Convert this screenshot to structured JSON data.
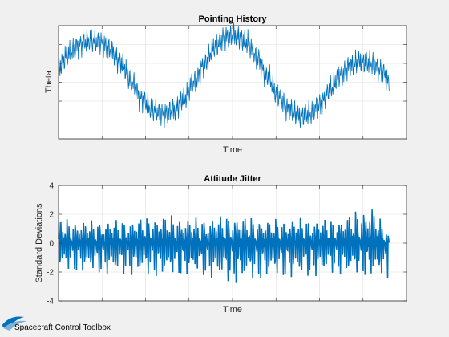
{
  "chart_data": [
    {
      "type": "line",
      "title": "Pointing History",
      "xlabel": "Time",
      "ylabel": "Theta",
      "xlim": [
        0,
        1
      ],
      "ylim": [
        -1.5,
        1.5
      ],
      "yticks": [
        -1,
        -0.5,
        0,
        0.5,
        1
      ],
      "yticklabels_shown": false,
      "xticklabels_shown": false,
      "grid": true,
      "color": "#0072BD",
      "series": [
        {
          "x": [
            0.0,
            0.03,
            0.06,
            0.09,
            0.12,
            0.15,
            0.18,
            0.21,
            0.24,
            0.27,
            0.3,
            0.33,
            0.36,
            0.39,
            0.42,
            0.45,
            0.48,
            0.51,
            0.54,
            0.57,
            0.6,
            0.63,
            0.66,
            0.69,
            0.72,
            0.75,
            0.78,
            0.81,
            0.84,
            0.87,
            0.9,
            0.93,
            0.95
          ],
          "values": [
            0.4,
            0.75,
            1.0,
            1.1,
            1.05,
            0.85,
            0.5,
            0.0,
            -0.45,
            -0.75,
            -0.85,
            -0.75,
            -0.45,
            0.0,
            0.5,
            0.95,
            1.2,
            1.25,
            1.05,
            0.65,
            0.15,
            -0.35,
            -0.7,
            -0.9,
            -0.85,
            -0.6,
            -0.2,
            0.2,
            0.45,
            0.55,
            0.5,
            0.3,
            0.0
          ]
        }
      ]
    },
    {
      "type": "line",
      "title": "Attitude Jitter",
      "xlabel": "Time",
      "ylabel": "Standard Deviations",
      "xlim": [
        0,
        1
      ],
      "ylim": [
        -4,
        4
      ],
      "yticks": [
        -4,
        -2,
        0,
        2,
        4
      ],
      "yticklabels": [
        "-4",
        "-2",
        "0",
        "2",
        "4"
      ],
      "xticklabels_shown": false,
      "grid": true,
      "color": "#0072BD",
      "series": [
        {
          "x": [
            0.0,
            0.1,
            0.2,
            0.3,
            0.4,
            0.5,
            0.6,
            0.7,
            0.8,
            0.9,
            0.95
          ],
          "values_envelope_max": [
            2.0,
            1.8,
            1.9,
            2.3,
            2.0,
            2.3,
            1.9,
            2.0,
            1.9,
            3.2,
            0.6
          ],
          "values_envelope_min": [
            -1.9,
            -2.1,
            -2.2,
            -2.3,
            -2.2,
            -2.8,
            -2.4,
            -2.4,
            -2.1,
            -2.3,
            -2.6
          ]
        }
      ]
    }
  ],
  "branding": {
    "text": "Spacecraft Control Toolbox"
  }
}
